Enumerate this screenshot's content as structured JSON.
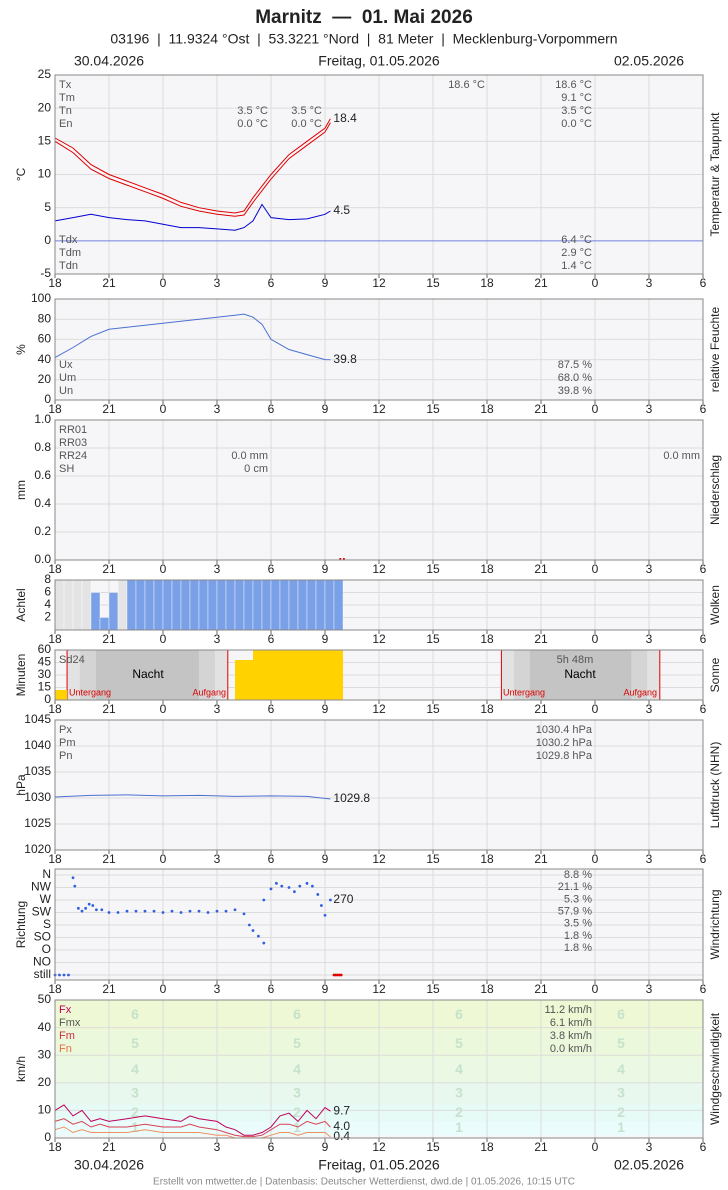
{
  "header": {
    "title": "Marnitz  —  01. Mai 2026",
    "subtitle": "03196  |  11.9324 °Ost  |  53.3221 °Nord  |  81 Meter  |  Mecklenburg-Vorpommern",
    "dates": [
      "30.04.2026",
      "Freitag, 01.05.2026",
      "02.05.2026"
    ],
    "footer": "Erstellt von mtwetter.de | Datenbasis: Deutscher Wetterdienst, dwd.de | 01.05.2026, 10:15 UTC"
  },
  "chart_data": [
    {
      "type": "line",
      "title": "Temperatur & Taupunkt",
      "ylabel": "°C",
      "xlim": [
        0,
        36
      ],
      "xticks": [
        {
          "value": 0,
          "label": "18"
        },
        {
          "value": 3,
          "label": "21"
        },
        {
          "value": 6,
          "label": "0"
        },
        {
          "value": 9,
          "label": "3"
        },
        {
          "value": 12,
          "label": "6"
        },
        {
          "value": 15,
          "label": "9"
        },
        {
          "value": 18,
          "label": "12"
        },
        {
          "value": 21,
          "label": "15"
        },
        {
          "value": 24,
          "label": "18"
        },
        {
          "value": 27,
          "label": "21"
        },
        {
          "value": 30,
          "label": "0"
        },
        {
          "value": 33,
          "label": "3"
        },
        {
          "value": 36,
          "label": "6"
        }
      ],
      "ylim": [
        -5,
        25
      ],
      "yticks": [
        -5,
        0,
        5,
        10,
        15,
        20,
        25
      ],
      "zero_line": "#7080e0",
      "series": [
        {
          "name": "Tx",
          "color": "#e00000",
          "label_last": true,
          "x": [
            0,
            1,
            2,
            3,
            4,
            5,
            6,
            7,
            8,
            9,
            10,
            10.5,
            11,
            12,
            13,
            14,
            15,
            15.3
          ],
          "values": [
            15.5,
            14,
            11.5,
            10,
            9,
            8,
            7,
            5.8,
            5,
            4.5,
            4.2,
            4.5,
            6.5,
            10,
            13,
            15,
            17,
            18.4
          ]
        },
        {
          "name": "Tn",
          "color": "#e00000",
          "x": [
            0,
            1,
            2,
            3,
            4,
            5,
            6,
            7,
            8,
            9,
            10,
            10.5,
            11,
            12,
            13,
            14,
            15,
            15.3
          ],
          "values": [
            15,
            13.3,
            10.8,
            9.4,
            8.4,
            7.4,
            6.4,
            5.2,
            4.5,
            4,
            3.7,
            3.9,
            5.8,
            9.3,
            12.4,
            14.4,
            16.4,
            17.8
          ]
        },
        {
          "name": "Tdm",
          "color": "#0000d0",
          "label_last": true,
          "x": [
            0,
            1,
            2,
            3,
            4,
            5,
            6,
            7,
            8,
            9,
            10,
            10.5,
            11,
            11.5,
            12,
            13,
            14,
            15,
            15.3
          ],
          "values": [
            3,
            3.5,
            4,
            3.5,
            3.2,
            3,
            2.5,
            2,
            2,
            1.8,
            1.6,
            2,
            3,
            5.5,
            3.5,
            3.2,
            3.3,
            4,
            4.5
          ]
        }
      ],
      "notes": [
        [
          "Tx",
          "Tm",
          "Tn",
          "En"
        ],
        [
          "Tdx",
          "Tdm",
          "Tdn"
        ],
        [
          "18.6 °C",
          "9.1 °C",
          "3.5 °C",
          "0.0 °C"
        ],
        [
          "18.6 °C"
        ],
        [
          "3.5 °C",
          "0.0 °C"
        ],
        [
          "3.5 °C",
          "0.0 °C"
        ],
        [
          "6.4 °C",
          "2.9 °C",
          "1.4 °C"
        ]
      ]
    },
    {
      "type": "line",
      "title": "relative Feuchte",
      "ylabel": "%",
      "ylim": [
        0,
        100
      ],
      "yticks": [
        0,
        20,
        40,
        60,
        80,
        100
      ],
      "series": [
        {
          "name": "Um",
          "color": "#4a70d0",
          "label_last": true,
          "x": [
            0,
            1,
            2,
            3,
            4,
            5,
            6,
            7,
            8,
            9,
            10,
            10.5,
            11,
            11.5,
            12,
            12.5,
            13,
            14,
            15,
            15.3
          ],
          "values": [
            42,
            52,
            63,
            70,
            72,
            74,
            76,
            78,
            80,
            82,
            84,
            85,
            82,
            75,
            60,
            55,
            50,
            45,
            40,
            39.8
          ]
        }
      ],
      "notes": [
        [
          "Ux",
          "Um",
          "Un"
        ],
        [
          "87.5 %",
          "68.0 %",
          "39.8 %"
        ]
      ]
    },
    {
      "type": "bar",
      "title": "Niederschlag",
      "ylabel": "mm",
      "ylim": [
        0,
        1
      ],
      "yticks": [
        {
          "value": 0,
          "label": "0.0"
        },
        0.2,
        0.4,
        0.6,
        0.8,
        {
          "value": 1,
          "label": "1.0"
        }
      ],
      "bar_width": 0.1,
      "series": [
        {
          "name": "RR01",
          "color": "#e00000",
          "x": [
            15.8,
            16
          ],
          "values": [
            0,
            0
          ]
        }
      ],
      "notes": [
        [
          "RR01",
          "RR03",
          "RR24",
          "SH"
        ],
        [
          "0.0 mm",
          "0 cm"
        ],
        [
          "0.0 mm"
        ]
      ]
    },
    {
      "type": "bar",
      "title": "Wolken",
      "ylabel": "Achtel",
      "ylim": [
        0,
        8
      ],
      "yticks": [
        2,
        4,
        6,
        8
      ],
      "bar_width": 0.5,
      "series": [
        {
          "color": "#7aa0e8",
          "x": [
            0,
            0.5,
            1,
            1.5,
            2,
            2.5,
            3,
            3.5,
            4,
            4.5,
            5,
            5.5,
            6,
            6.5,
            7,
            7.5,
            8,
            8.5,
            9,
            9.5,
            10,
            10.5,
            11,
            11.5,
            12,
            12.5,
            13,
            13.5,
            14,
            14.5,
            15,
            15.5
          ],
          "values": [
            8,
            8,
            8,
            8,
            6,
            2,
            6,
            8,
            8,
            8,
            8,
            8,
            8,
            8,
            8,
            8,
            8,
            8,
            8,
            8,
            8,
            8,
            8,
            8,
            8,
            8,
            8,
            8,
            8,
            8,
            8,
            8
          ],
          "bar_colors": [
            "#e4e4e4",
            "#e4e4e4",
            "#e4e4e4",
            "#e4e4e4",
            "#7aa0e8",
            "#7aa0e8",
            "#7aa0e8",
            "#e4e4e4",
            "#7aa0e8",
            "#7aa0e8",
            "#7aa0e8",
            "#7aa0e8",
            "#7aa0e8",
            "#7aa0e8",
            "#7aa0e8",
            "#7aa0e8",
            "#7aa0e8",
            "#7aa0e8",
            "#7aa0e8",
            "#7aa0e8",
            "#7aa0e8",
            "#7aa0e8",
            "#7aa0e8",
            "#7aa0e8",
            "#7aa0e8",
            "#7aa0e8",
            "#7aa0e8",
            "#7aa0e8",
            "#7aa0e8",
            "#7aa0e8",
            "#7aa0e8",
            "#7aa0e8"
          ]
        }
      ],
      "notes": []
    },
    {
      "type": "bar",
      "title": "Sonne",
      "ylabel": "Minuten",
      "ylim": [
        0,
        60
      ],
      "yticks": [
        0,
        15,
        30,
        45,
        60
      ],
      "bar_width": 1,
      "sunset": [
        0.67,
        24.8
      ],
      "sunrise": [
        9.6,
        33.6
      ],
      "series": [
        {
          "color": "#ffd200",
          "x": [
            0,
            10,
            11,
            12,
            13,
            14,
            15
          ],
          "values": [
            12,
            48,
            60,
            60,
            60,
            60,
            60
          ]
        }
      ],
      "notes": [
        [
          "Sd24"
        ],
        [
          "Nacht"
        ],
        [
          "5h 48m"
        ],
        [
          "Nacht"
        ],
        [
          "Untergang"
        ],
        [
          "Aufgang"
        ],
        [
          "Untergang"
        ],
        [
          "Aufgang"
        ]
      ]
    },
    {
      "type": "line",
      "title": "Luftdruck (NHN)",
      "ylabel": "hPa",
      "ylim": [
        1020,
        1045
      ],
      "yticks": [
        1020,
        1025,
        1030,
        1035,
        1040,
        1045
      ],
      "series": [
        {
          "name": "Pm",
          "color": "#4a70d0",
          "label_last": true,
          "x": [
            0,
            2,
            4,
            6,
            8,
            10,
            12,
            14,
            15.3
          ],
          "values": [
            1030.2,
            1030.5,
            1030.6,
            1030.4,
            1030.5,
            1030.3,
            1030.4,
            1030.3,
            1029.8
          ]
        }
      ],
      "notes": [
        [
          "Px",
          "Pm",
          "Pn"
        ],
        [
          "1030.4 hPa",
          "1030.2 hPa",
          "1029.8 hPa"
        ]
      ]
    },
    {
      "type": "scatter",
      "title": "Windrichtung",
      "ylabel": "Richtung",
      "ylim": [
        0,
        360
      ],
      "yticks": [
        {
          "value": 0,
          "label": "still"
        },
        {
          "value": 45,
          "label": "NO"
        },
        {
          "value": 90,
          "label": "O"
        },
        {
          "value": 135,
          "label": "SO"
        },
        {
          "value": 180,
          "label": "S"
        },
        {
          "value": 225,
          "label": "SW"
        },
        {
          "value": 270,
          "label": "W"
        },
        {
          "value": 315,
          "label": "NW"
        },
        {
          "value": 360,
          "label": "N"
        }
      ],
      "series": [
        {
          "color": "#3060e0",
          "label_last": true,
          "x": [
            0,
            0.25,
            0.5,
            0.75,
            1,
            1.1,
            1.3,
            1.5,
            1.7,
            1.9,
            2.1,
            2.3,
            2.6,
            3,
            3.5,
            4,
            4.5,
            5,
            5.5,
            6,
            6.5,
            7,
            7.5,
            8,
            8.5,
            9,
            9.5,
            10,
            10.5,
            10.8,
            11,
            11.3,
            11.6,
            11.6,
            12,
            12.3,
            12.6,
            13,
            13.3,
            13.6,
            14,
            14.3,
            14.6,
            14.8,
            15,
            15.3
          ],
          "values": [
            0,
            0,
            0,
            0,
            350,
            320,
            240,
            230,
            240,
            255,
            250,
            235,
            235,
            225,
            225,
            230,
            230,
            230,
            230,
            225,
            230,
            225,
            230,
            230,
            225,
            230,
            230,
            235,
            220,
            180,
            160,
            140,
            115,
            270,
            310,
            330,
            320,
            315,
            300,
            320,
            330,
            320,
            290,
            250,
            215,
            270
          ]
        },
        {
          "color": "#e00000",
          "x": [
            15.5,
            15.6,
            15.7,
            15.8,
            15.9
          ],
          "values": [
            0,
            0,
            0,
            0,
            0
          ]
        }
      ],
      "notes": [
        [
          "8.8 %",
          "21.1 %",
          "5.3 %",
          "57.9 %",
          "3.5 %",
          "1.8 %",
          "1.8 %"
        ]
      ]
    },
    {
      "type": "line",
      "title": "Windgeschwindigkeit",
      "ylabel": "km/h",
      "ylim": [
        0,
        50
      ],
      "yticks": [
        0,
        10,
        20,
        30,
        40,
        50
      ],
      "bands": [
        {
          "label": "1",
          "from": 1,
          "to": 6,
          "color": "#eafcfc"
        },
        {
          "label": "2",
          "from": 6,
          "to": 12,
          "color": "#e6faf6"
        },
        {
          "label": "3",
          "from": 12,
          "to": 20,
          "color": "#e8f8ee"
        },
        {
          "label": "4",
          "from": 20,
          "to": 29,
          "color": "#eaf8e4"
        },
        {
          "label": "5",
          "from": 29,
          "to": 39,
          "color": "#ecf8dc"
        },
        {
          "label": "6",
          "from": 39,
          "to": 50,
          "color": "#eef8d4"
        }
      ],
      "x": [
        0,
        0.5,
        1,
        1.5,
        2,
        2.5,
        3,
        4,
        5,
        6,
        7,
        7.5,
        8,
        9,
        9.5,
        10,
        10.5,
        11,
        11.5,
        12,
        12.5,
        13,
        13.5,
        14,
        14.5,
        15,
        15.3
      ],
      "series": [
        {
          "name": "Fx",
          "color": "#c0005a",
          "label_last": true,
          "values": [
            10,
            12,
            8,
            10,
            6,
            7,
            6,
            7,
            8,
            7,
            6,
            8,
            7,
            6,
            4,
            3,
            1,
            1,
            2,
            4,
            8,
            9,
            6,
            10,
            7,
            11,
            9.7
          ]
        },
        {
          "name": "Fm",
          "color": "#d84050",
          "label_last": true,
          "values": [
            6,
            7,
            5,
            6,
            4,
            5,
            4,
            4,
            5,
            4,
            4,
            5,
            4,
            3,
            2,
            1,
            0.5,
            0.5,
            1,
            3,
            5,
            5,
            4,
            6,
            5,
            6,
            4
          ],
          "value_labels": [
            null,
            null,
            null,
            null,
            null,
            null,
            null,
            null,
            null,
            null,
            null,
            null,
            null,
            null,
            null,
            null,
            null,
            null,
            null,
            null,
            null,
            null,
            null,
            null,
            null,
            null,
            "4.0"
          ]
        },
        {
          "name": "Fn",
          "color": "#f09060",
          "label_last": true,
          "values": [
            3,
            4,
            2,
            3,
            2,
            2,
            2,
            2,
            3,
            2,
            2,
            2,
            2,
            1,
            1,
            0,
            0,
            0,
            0,
            1,
            2,
            2,
            1,
            2,
            2,
            2,
            0.4
          ]
        }
      ],
      "notes": [
        [
          "Fx",
          "Fmx",
          "Fm",
          "Fn"
        ],
        [
          "11.2 km/h",
          "6.1 km/h",
          "3.8 km/h",
          "0.0 km/h"
        ]
      ]
    }
  ]
}
